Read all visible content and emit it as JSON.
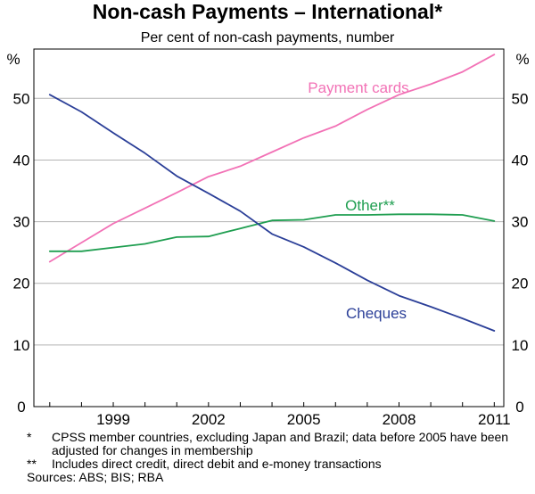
{
  "chart_data": {
    "type": "line",
    "title": "Non-cash Payments – International*",
    "subtitle": "Per cent of non-cash payments, number",
    "yunit_left": "%",
    "yunit_right": "%",
    "ylim": [
      0,
      58
    ],
    "yticks": [
      0,
      10,
      20,
      30,
      40,
      50
    ],
    "xlim": [
      1996.5,
      2011.3
    ],
    "xticks": [
      1999,
      2002,
      2005,
      2008,
      2011
    ],
    "grid": true,
    "legend": "inline labels",
    "x": [
      1997,
      1998,
      1999,
      2000,
      2001,
      2002,
      2003,
      2004,
      2005,
      2006,
      2007,
      2008,
      2009,
      2010,
      2011
    ],
    "series": [
      {
        "name": "Payment cards",
        "color": "#f272b6",
        "values": [
          23.5,
          26.6,
          29.7,
          32.2,
          34.7,
          37.3,
          39.0,
          41.3,
          43.6,
          45.5,
          48.2,
          50.6,
          52.3,
          54.3,
          57.1
        ]
      },
      {
        "name": "Other**",
        "color": "#1f9e50",
        "values": [
          25.2,
          25.2,
          25.8,
          26.4,
          27.5,
          27.6,
          28.9,
          30.2,
          30.3,
          31.1,
          31.1,
          31.2,
          31.2,
          31.1,
          30.1
        ]
      },
      {
        "name": "Cheques",
        "color": "#2b3f98",
        "values": [
          50.6,
          47.8,
          44.4,
          41.1,
          37.4,
          34.6,
          31.7,
          28.0,
          25.9,
          23.3,
          20.5,
          18.0,
          16.2,
          14.3,
          12.3
        ]
      }
    ]
  },
  "notes": [
    {
      "mark": "*",
      "text": "CPSS member countries, excluding Japan and Brazil; data before 2005 have been adjusted for changes in membership"
    },
    {
      "mark": "**",
      "text": "Includes direct credit, direct debit and e-money transactions"
    }
  ],
  "sources": "Sources: ABS; BIS; RBA"
}
